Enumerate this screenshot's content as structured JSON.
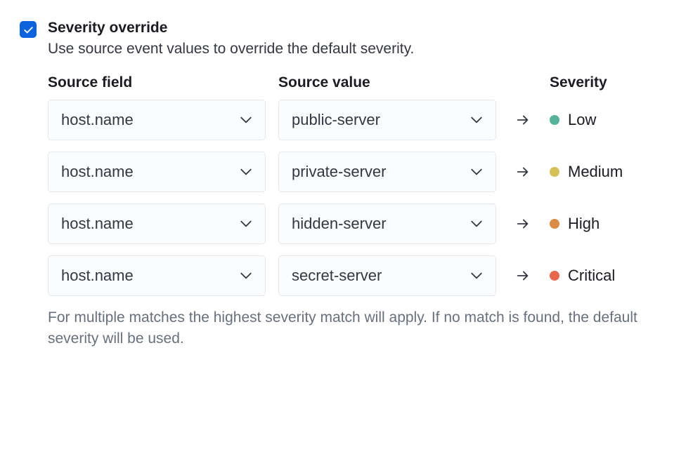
{
  "checkbox": {
    "checked": true,
    "background_color": "#0b64dd"
  },
  "title": "Severity override",
  "description": "Use source event values to override the default severity.",
  "columns": {
    "source_field": "Source field",
    "source_value": "Source value",
    "severity": "Severity"
  },
  "rows": [
    {
      "source_field": "host.name",
      "source_value": "public-server",
      "severity_label": "Low",
      "severity_color": "#54b399"
    },
    {
      "source_field": "host.name",
      "source_value": "private-server",
      "severity_label": "Medium",
      "severity_color": "#d6bf57"
    },
    {
      "source_field": "host.name",
      "source_value": "hidden-server",
      "severity_label": "High",
      "severity_color": "#da8b45"
    },
    {
      "source_field": "host.name",
      "source_value": "secret-server",
      "severity_label": "Critical",
      "severity_color": "#e7664c"
    }
  ],
  "footer": "For multiple matches the highest severity match will apply. If no match is found, the default severity will be used.",
  "styling": {
    "background_color": "#ffffff",
    "text_color": "#1a1c21",
    "muted_text_color": "#69707d",
    "select_background": "#fbfcfd",
    "select_border": "#e4e7ec",
    "font_family": "-apple-system, BlinkMacSystemFont, Segoe UI, Helvetica, Arial, sans-serif",
    "title_fontsize": 21,
    "title_fontweight": 700,
    "body_fontsize": 21,
    "select_height": 58,
    "select_width": 310,
    "row_gap": 18,
    "dot_size": 14
  }
}
